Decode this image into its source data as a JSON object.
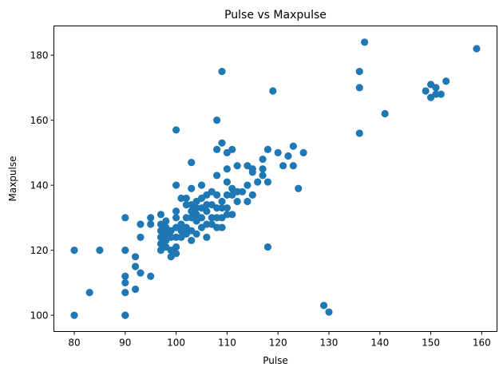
{
  "chart_data": {
    "type": "scatter",
    "title": "Pulse vs Maxpulse",
    "xlabel": "Pulse",
    "ylabel": "Maxpulse",
    "xlim": [
      76,
      163
    ],
    "ylim": [
      95,
      189
    ],
    "xticks": [
      80,
      90,
      100,
      110,
      120,
      130,
      140,
      150,
      160
    ],
    "yticks": [
      100,
      120,
      140,
      160,
      180
    ],
    "grid": false,
    "marker_color": "#1f77b4",
    "points": [
      [
        80,
        120
      ],
      [
        80,
        100
      ],
      [
        83,
        107
      ],
      [
        85,
        120
      ],
      [
        90,
        130
      ],
      [
        90,
        120
      ],
      [
        90,
        112
      ],
      [
        90,
        110
      ],
      [
        90,
        107
      ],
      [
        90,
        100
      ],
      [
        90,
        100
      ],
      [
        92,
        118
      ],
      [
        92,
        115
      ],
      [
        92,
        108
      ],
      [
        93,
        128
      ],
      [
        93,
        124
      ],
      [
        93,
        113
      ],
      [
        95,
        130
      ],
      [
        95,
        128
      ],
      [
        95,
        112
      ],
      [
        97,
        131
      ],
      [
        97,
        128
      ],
      [
        97,
        126
      ],
      [
        97,
        124
      ],
      [
        97,
        122
      ],
      [
        97,
        120
      ],
      [
        98,
        129
      ],
      [
        98,
        127
      ],
      [
        98,
        125
      ],
      [
        98,
        123
      ],
      [
        98,
        121
      ],
      [
        99,
        126
      ],
      [
        99,
        124
      ],
      [
        99,
        120
      ],
      [
        99,
        118
      ],
      [
        100,
        157
      ],
      [
        100,
        140
      ],
      [
        100,
        132
      ],
      [
        100,
        130
      ],
      [
        100,
        127
      ],
      [
        100,
        124
      ],
      [
        100,
        121
      ],
      [
        100,
        119
      ],
      [
        101,
        136
      ],
      [
        101,
        128
      ],
      [
        101,
        126
      ],
      [
        101,
        124
      ],
      [
        102,
        136
      ],
      [
        102,
        134
      ],
      [
        102,
        130
      ],
      [
        102,
        127
      ],
      [
        102,
        125
      ],
      [
        103,
        147
      ],
      [
        103,
        139
      ],
      [
        103,
        134
      ],
      [
        103,
        132
      ],
      [
        103,
        130
      ],
      [
        103,
        126
      ],
      [
        103,
        123
      ],
      [
        104,
        135
      ],
      [
        104,
        133
      ],
      [
        104,
        131
      ],
      [
        104,
        129
      ],
      [
        104,
        125
      ],
      [
        105,
        140
      ],
      [
        105,
        136
      ],
      [
        105,
        133
      ],
      [
        105,
        130
      ],
      [
        105,
        127
      ],
      [
        106,
        137
      ],
      [
        106,
        134
      ],
      [
        106,
        132
      ],
      [
        106,
        128
      ],
      [
        106,
        124
      ],
      [
        107,
        138
      ],
      [
        107,
        134
      ],
      [
        107,
        130
      ],
      [
        107,
        128
      ],
      [
        108,
        160
      ],
      [
        108,
        151
      ],
      [
        108,
        143
      ],
      [
        108,
        137
      ],
      [
        108,
        133
      ],
      [
        108,
        130
      ],
      [
        108,
        127
      ],
      [
        109,
        175
      ],
      [
        109,
        153
      ],
      [
        109,
        135
      ],
      [
        109,
        133
      ],
      [
        109,
        130
      ],
      [
        109,
        127
      ],
      [
        110,
        150
      ],
      [
        110,
        145
      ],
      [
        110,
        141
      ],
      [
        110,
        137
      ],
      [
        110,
        133
      ],
      [
        110,
        131
      ],
      [
        111,
        151
      ],
      [
        111,
        139
      ],
      [
        111,
        137
      ],
      [
        111,
        131
      ],
      [
        112,
        146
      ],
      [
        112,
        138
      ],
      [
        112,
        135
      ],
      [
        113,
        138
      ],
      [
        114,
        146
      ],
      [
        114,
        140
      ],
      [
        114,
        135
      ],
      [
        115,
        145
      ],
      [
        115,
        144
      ],
      [
        115,
        137
      ],
      [
        116,
        141
      ],
      [
        117,
        148
      ],
      [
        117,
        145
      ],
      [
        117,
        143
      ],
      [
        118,
        151
      ],
      [
        118,
        141
      ],
      [
        118,
        121
      ],
      [
        119,
        169
      ],
      [
        120,
        150
      ],
      [
        121,
        146
      ],
      [
        122,
        149
      ],
      [
        123,
        152
      ],
      [
        123,
        146
      ],
      [
        124,
        139
      ],
      [
        125,
        150
      ],
      [
        129,
        103
      ],
      [
        130,
        101
      ],
      [
        136,
        175
      ],
      [
        136,
        170
      ],
      [
        136,
        156
      ],
      [
        137,
        184
      ],
      [
        141,
        162
      ],
      [
        149,
        169
      ],
      [
        150,
        171
      ],
      [
        150,
        167
      ],
      [
        151,
        170
      ],
      [
        151,
        168
      ],
      [
        152,
        168
      ],
      [
        153,
        172
      ],
      [
        159,
        182
      ]
    ]
  }
}
